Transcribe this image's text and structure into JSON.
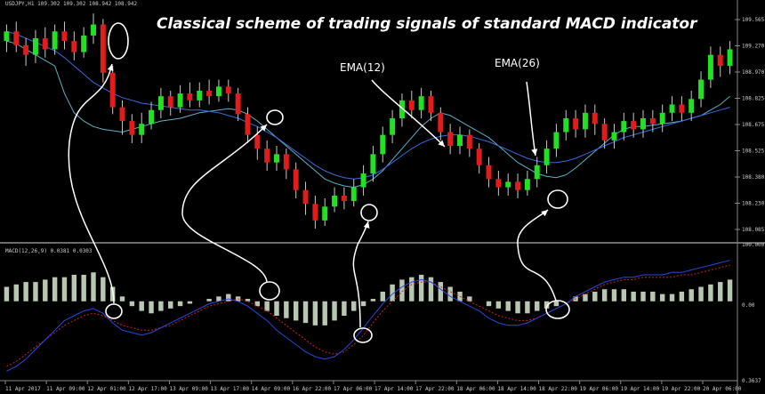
{
  "chart_data": [
    {
      "type": "candlestick",
      "title": "Classical scheme of trading signals of standard MACD indicator",
      "symbol_info": "USDJPY,H1  109.302 109.302 108.942 108.942",
      "y_ticks": [
        "109.565",
        "109.270",
        "108.970",
        "108.825",
        "108.675",
        "108.525",
        "108.380",
        "108.230",
        "108.085"
      ],
      "ylim": [
        108.05,
        109.7
      ],
      "grid": false,
      "annotations": [
        "EMA(12)",
        "EMA(26)"
      ],
      "series": [
        {
          "name": "EMA(12)",
          "color": "#5fb0c8",
          "values": [
            109.48,
            109.46,
            109.42,
            109.38,
            109.34,
            109.3,
            109.1,
            108.96,
            108.9,
            108.86,
            108.84,
            108.83,
            108.82,
            108.84,
            108.86,
            108.88,
            108.9,
            108.91,
            108.92,
            108.94,
            108.96,
            108.97,
            108.98,
            108.99,
            108.98,
            108.95,
            108.9,
            108.84,
            108.78,
            108.72,
            108.66,
            108.6,
            108.54,
            108.48,
            108.45,
            108.43,
            108.42,
            108.44,
            108.48,
            108.54,
            108.62,
            108.7,
            108.78,
            108.86,
            108.92,
            108.96,
            108.94,
            108.9,
            108.86,
            108.82,
            108.78,
            108.72,
            108.66,
            108.6,
            108.56,
            108.52,
            108.5,
            108.49,
            108.51,
            108.56,
            108.62,
            108.68,
            108.74,
            108.8,
            108.84,
            108.86,
            108.86,
            108.87,
            108.88,
            108.89,
            108.9,
            108.92,
            108.94,
            108.98,
            109.02,
            109.08
          ]
        },
        {
          "name": "EMA(26)",
          "color": "#3a6be0",
          "values": [
            109.55,
            109.53,
            109.5,
            109.47,
            109.44,
            109.41,
            109.36,
            109.3,
            109.24,
            109.18,
            109.14,
            109.1,
            109.07,
            109.05,
            109.03,
            109.02,
            109.01,
            109.0,
            108.99,
            108.98,
            108.98,
            108.97,
            108.96,
            108.94,
            108.92,
            108.89,
            108.86,
            108.82,
            108.78,
            108.73,
            108.68,
            108.63,
            108.58,
            108.54,
            108.51,
            108.49,
            108.48,
            108.49,
            108.51,
            108.55,
            108.6,
            108.65,
            108.7,
            108.74,
            108.77,
            108.79,
            108.8,
            108.8,
            108.79,
            108.77,
            108.75,
            108.72,
            108.69,
            108.66,
            108.63,
            108.61,
            108.6,
            108.6,
            108.61,
            108.63,
            108.66,
            108.69,
            108.72,
            108.75,
            108.78,
            108.8,
            108.82,
            108.84,
            108.86,
            108.88,
            108.9,
            108.92,
            108.94,
            108.96,
            108.98,
            109.0
          ]
        }
      ],
      "candles": [
        [
          109.48,
          109.55,
          109.6,
          109.4
        ],
        [
          109.55,
          109.45,
          109.62,
          109.4
        ],
        [
          109.45,
          109.38,
          109.5,
          109.3
        ],
        [
          109.38,
          109.5,
          109.56,
          109.32
        ],
        [
          109.5,
          109.42,
          109.58,
          109.36
        ],
        [
          109.42,
          109.55,
          109.6,
          109.38
        ],
        [
          109.55,
          109.48,
          109.62,
          109.42
        ],
        [
          109.48,
          109.4,
          109.55,
          109.34
        ],
        [
          109.4,
          109.52,
          109.58,
          109.36
        ],
        [
          109.52,
          109.6,
          109.68,
          109.46
        ],
        [
          109.6,
          109.25,
          109.64,
          109.18
        ],
        [
          109.25,
          109.0,
          109.3,
          108.95
        ],
        [
          109.0,
          108.9,
          109.05,
          108.8
        ],
        [
          108.9,
          108.8,
          108.95,
          108.74
        ],
        [
          108.8,
          108.88,
          108.96,
          108.74
        ],
        [
          108.88,
          108.98,
          109.04,
          108.84
        ],
        [
          108.98,
          109.08,
          109.14,
          108.92
        ],
        [
          109.08,
          109.0,
          109.12,
          108.94
        ],
        [
          109.0,
          109.1,
          109.16,
          108.96
        ],
        [
          109.1,
          109.05,
          109.18,
          109.0
        ],
        [
          109.05,
          109.12,
          109.18,
          109.0
        ],
        [
          109.12,
          109.08,
          109.2,
          109.02
        ],
        [
          109.08,
          109.15,
          109.2,
          109.04
        ],
        [
          109.15,
          109.1,
          109.2,
          109.04
        ],
        [
          109.1,
          108.95,
          109.14,
          108.9
        ],
        [
          108.95,
          108.8,
          109.0,
          108.74
        ],
        [
          108.8,
          108.7,
          108.86,
          108.62
        ],
        [
          108.7,
          108.6,
          108.76,
          108.54
        ],
        [
          108.6,
          108.66,
          108.72,
          108.54
        ],
        [
          108.66,
          108.55,
          108.7,
          108.48
        ],
        [
          108.55,
          108.4,
          108.6,
          108.34
        ],
        [
          108.4,
          108.3,
          108.46,
          108.22
        ],
        [
          108.3,
          108.18,
          108.36,
          108.12
        ],
        [
          108.18,
          108.28,
          108.34,
          108.14
        ],
        [
          108.28,
          108.36,
          108.42,
          108.24
        ],
        [
          108.36,
          108.32,
          108.42,
          108.26
        ],
        [
          108.32,
          108.42,
          108.48,
          108.28
        ],
        [
          108.42,
          108.52,
          108.58,
          108.36
        ],
        [
          108.52,
          108.66,
          108.72,
          108.46
        ],
        [
          108.66,
          108.8,
          108.86,
          108.6
        ],
        [
          108.8,
          108.92,
          108.98,
          108.74
        ],
        [
          108.92,
          109.05,
          109.1,
          108.86
        ],
        [
          109.05,
          108.98,
          109.12,
          108.92
        ],
        [
          108.98,
          109.08,
          109.14,
          108.92
        ],
        [
          109.08,
          108.96,
          109.12,
          108.9
        ],
        [
          108.96,
          108.82,
          109.0,
          108.76
        ],
        [
          108.82,
          108.72,
          108.88,
          108.66
        ],
        [
          108.72,
          108.8,
          108.86,
          108.66
        ],
        [
          108.8,
          108.7,
          108.84,
          108.64
        ],
        [
          108.7,
          108.58,
          108.74,
          108.52
        ],
        [
          108.58,
          108.48,
          108.64,
          108.42
        ],
        [
          108.48,
          108.42,
          108.54,
          108.36
        ],
        [
          108.42,
          108.46,
          108.52,
          108.36
        ],
        [
          108.46,
          108.4,
          108.52,
          108.34
        ],
        [
          108.4,
          108.48,
          108.54,
          108.36
        ],
        [
          108.48,
          108.58,
          108.64,
          108.42
        ],
        [
          108.58,
          108.7,
          108.76,
          108.52
        ],
        [
          108.7,
          108.82,
          108.88,
          108.64
        ],
        [
          108.82,
          108.92,
          108.98,
          108.76
        ],
        [
          108.92,
          108.84,
          108.98,
          108.78
        ],
        [
          108.84,
          108.96,
          109.02,
          108.78
        ],
        [
          108.96,
          108.88,
          109.02,
          108.8
        ],
        [
          108.88,
          108.76,
          108.92,
          108.7
        ],
        [
          108.76,
          108.82,
          108.88,
          108.7
        ],
        [
          108.82,
          108.9,
          108.96,
          108.76
        ],
        [
          108.9,
          108.84,
          108.96,
          108.78
        ],
        [
          108.84,
          108.92,
          108.98,
          108.78
        ],
        [
          108.92,
          108.88,
          108.98,
          108.82
        ],
        [
          108.88,
          108.96,
          109.02,
          108.82
        ],
        [
          108.96,
          109.02,
          109.08,
          108.9
        ],
        [
          109.02,
          108.96,
          109.08,
          108.9
        ],
        [
          108.96,
          109.06,
          109.12,
          108.9
        ],
        [
          109.06,
          109.2,
          109.26,
          109.0
        ],
        [
          109.2,
          109.38,
          109.44,
          109.14
        ],
        [
          109.38,
          109.3,
          109.44,
          109.22
        ],
        [
          109.3,
          109.42,
          109.48,
          109.24
        ]
      ]
    },
    {
      "type": "histogram",
      "label": "MACD(12,26,9) 0.0381 0.0303",
      "y_ticks": [
        "100.000",
        "0.00",
        "0.3637"
      ],
      "ylim": [
        -0.3,
        0.18
      ],
      "series": [
        {
          "name": "MACD",
          "color": "#b8c8b0",
          "values": [
            0.06,
            0.07,
            0.08,
            0.08,
            0.09,
            0.1,
            0.1,
            0.11,
            0.11,
            0.12,
            0.1,
            0.06,
            0.02,
            -0.02,
            -0.04,
            -0.05,
            -0.04,
            -0.03,
            -0.02,
            -0.01,
            0.0,
            0.01,
            0.02,
            0.03,
            0.02,
            0.01,
            -0.02,
            -0.04,
            -0.06,
            -0.07,
            -0.08,
            -0.09,
            -0.1,
            -0.1,
            -0.08,
            -0.06,
            -0.04,
            -0.02,
            0.01,
            0.04,
            0.07,
            0.09,
            0.1,
            0.11,
            0.1,
            0.08,
            0.06,
            0.04,
            0.02,
            0.0,
            -0.02,
            -0.03,
            -0.04,
            -0.05,
            -0.05,
            -0.04,
            -0.03,
            -0.02,
            0.0,
            0.02,
            0.03,
            0.04,
            0.05,
            0.05,
            0.05,
            0.04,
            0.04,
            0.04,
            0.03,
            0.03,
            0.04,
            0.05,
            0.06,
            0.07,
            0.08,
            0.09
          ]
        },
        {
          "name": "Signal",
          "color": "#d02020",
          "values": [
            -0.27,
            -0.25,
            -0.22,
            -0.19,
            -0.16,
            -0.13,
            -0.1,
            -0.08,
            -0.06,
            -0.05,
            -0.06,
            -0.08,
            -0.1,
            -0.11,
            -0.12,
            -0.12,
            -0.11,
            -0.1,
            -0.08,
            -0.06,
            -0.04,
            -0.02,
            -0.01,
            0.0,
            0.01,
            0.0,
            -0.02,
            -0.04,
            -0.07,
            -0.1,
            -0.13,
            -0.16,
            -0.19,
            -0.21,
            -0.22,
            -0.21,
            -0.18,
            -0.14,
            -0.09,
            -0.04,
            0.0,
            0.04,
            0.07,
            0.08,
            0.08,
            0.06,
            0.04,
            0.02,
            0.0,
            -0.02,
            -0.04,
            -0.06,
            -0.07,
            -0.08,
            -0.08,
            -0.07,
            -0.05,
            -0.03,
            -0.01,
            0.01,
            0.03,
            0.05,
            0.07,
            0.08,
            0.09,
            0.09,
            0.1,
            0.1,
            0.1,
            0.1,
            0.11,
            0.11,
            0.12,
            0.13,
            0.14,
            0.15
          ]
        },
        {
          "name": "MACD line",
          "color": "#2848e0",
          "values": [
            -0.29,
            -0.27,
            -0.24,
            -0.2,
            -0.16,
            -0.12,
            -0.08,
            -0.06,
            -0.04,
            -0.03,
            -0.05,
            -0.09,
            -0.12,
            -0.13,
            -0.14,
            -0.13,
            -0.11,
            -0.09,
            -0.07,
            -0.05,
            -0.03,
            -0.01,
            0.0,
            0.01,
            0.0,
            -0.02,
            -0.05,
            -0.08,
            -0.12,
            -0.15,
            -0.18,
            -0.21,
            -0.23,
            -0.24,
            -0.23,
            -0.2,
            -0.16,
            -0.11,
            -0.06,
            -0.01,
            0.03,
            0.06,
            0.08,
            0.09,
            0.08,
            0.05,
            0.02,
            0.0,
            -0.02,
            -0.04,
            -0.07,
            -0.09,
            -0.1,
            -0.1,
            -0.09,
            -0.07,
            -0.05,
            -0.03,
            -0.01,
            0.02,
            0.04,
            0.06,
            0.08,
            0.09,
            0.1,
            0.1,
            0.11,
            0.11,
            0.11,
            0.12,
            0.12,
            0.13,
            0.14,
            0.15,
            0.16,
            0.17
          ]
        }
      ]
    }
  ],
  "x_ticks": [
    "11 Apr 2017",
    "11 Apr 09:00",
    "12 Apr 01:00",
    "12 Apr 17:00",
    "13 Apr 09:00",
    "13 Apr 17:00",
    "14 Apr 09:00",
    "16 Apr 22:00",
    "17 Apr 06:00",
    "17 Apr 14:00",
    "17 Apr 22:00",
    "18 Apr 06:00",
    "18 Apr 14:00",
    "18 Apr 22:00",
    "19 Apr 06:00",
    "19 Apr 14:00",
    "19 Apr 22:00",
    "20 Apr 06:00"
  ]
}
